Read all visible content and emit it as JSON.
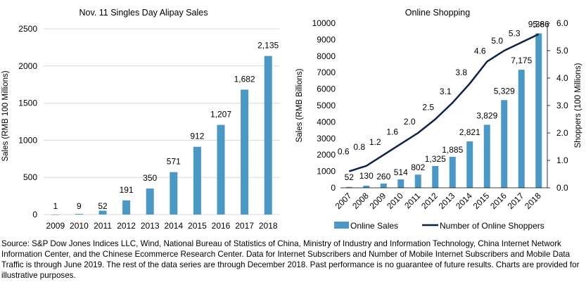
{
  "chart_data": [
    {
      "type": "bar",
      "title": "Nov. 11 Singles Day Alipay Sales",
      "ylabel": "Sales (RMB 100 Millions)",
      "xlabel": "",
      "ylim": [
        0,
        2500
      ],
      "yticks": [
        "0",
        "500",
        "1000",
        "1500",
        "2000",
        "2500"
      ],
      "categories": [
        "2009",
        "2010",
        "2011",
        "2012",
        "2013",
        "2014",
        "2015",
        "2016",
        "2017",
        "2018"
      ],
      "values": [
        1,
        9,
        52,
        191,
        350,
        571,
        912,
        1207,
        1682,
        2135
      ],
      "value_labels": [
        "1",
        "9",
        "52",
        "191",
        "350",
        "571",
        "912",
        "1,207",
        "1,682",
        "2,135"
      ],
      "bar_color": "#4a98c6"
    },
    {
      "type": "bar+line",
      "title": "Online Shopping",
      "ylabel": "Sales (RMB Billions)",
      "ylabel_right": "Shoppers (100 Millions)",
      "ylim": [
        0,
        10000
      ],
      "ylim_right": [
        0,
        6
      ],
      "yticks": [
        "0",
        "1000",
        "2000",
        "3000",
        "4000",
        "5000",
        "6000",
        "7000",
        "8000",
        "9000",
        "10000"
      ],
      "yticks_right": [
        "0.0",
        "1.0",
        "2.0",
        "3.0",
        "4.0",
        "5.0",
        "6.0"
      ],
      "categories": [
        "2007",
        "2008",
        "2009",
        "2010",
        "2011",
        "2012",
        "2013",
        "2014",
        "2015",
        "2016",
        "2017",
        "2018"
      ],
      "series": [
        {
          "name": "Online Sales",
          "type": "bar",
          "color": "#4a98c6",
          "values": [
            52,
            130,
            260,
            514,
            802,
            1325,
            1885,
            2821,
            3829,
            5329,
            7175,
            9386
          ],
          "labels": [
            "52",
            "130",
            "260",
            "514",
            "802",
            "1,325",
            "1,885",
            "2,821",
            "3,829",
            "5,329",
            "7,175",
            "9,386"
          ]
        },
        {
          "name": "Number of Online Shoppers",
          "type": "line",
          "axis": "right",
          "color": "#0d2248",
          "values": [
            0.6,
            0.8,
            1.2,
            1.6,
            2.0,
            2.5,
            3.1,
            3.8,
            4.6,
            5.0,
            5.3,
            5.6
          ],
          "labels": [
            "0.6",
            "0.8",
            "1.2",
            "1.6",
            "2.0",
            "2.5",
            "3.1",
            "3.8",
            "4.6",
            "5.0",
            "5.3",
            "5.6"
          ]
        }
      ]
    }
  ],
  "source_note": "Source: S&P Dow Jones Indices LLC, Wind, National Bureau of Statistics of China, Ministry of Industry and Information Technology, China Internet Network Information Center, and the Chinese Ecommerce Research Center.  Data for Internet Subscribers and Number of Mobile Internet Subscribers and Mobile Data Traffic is through June 2019.  The rest of the data series are through December 2018.  Past performance is no guarantee of future results.  Charts are provided for illustrative purposes."
}
